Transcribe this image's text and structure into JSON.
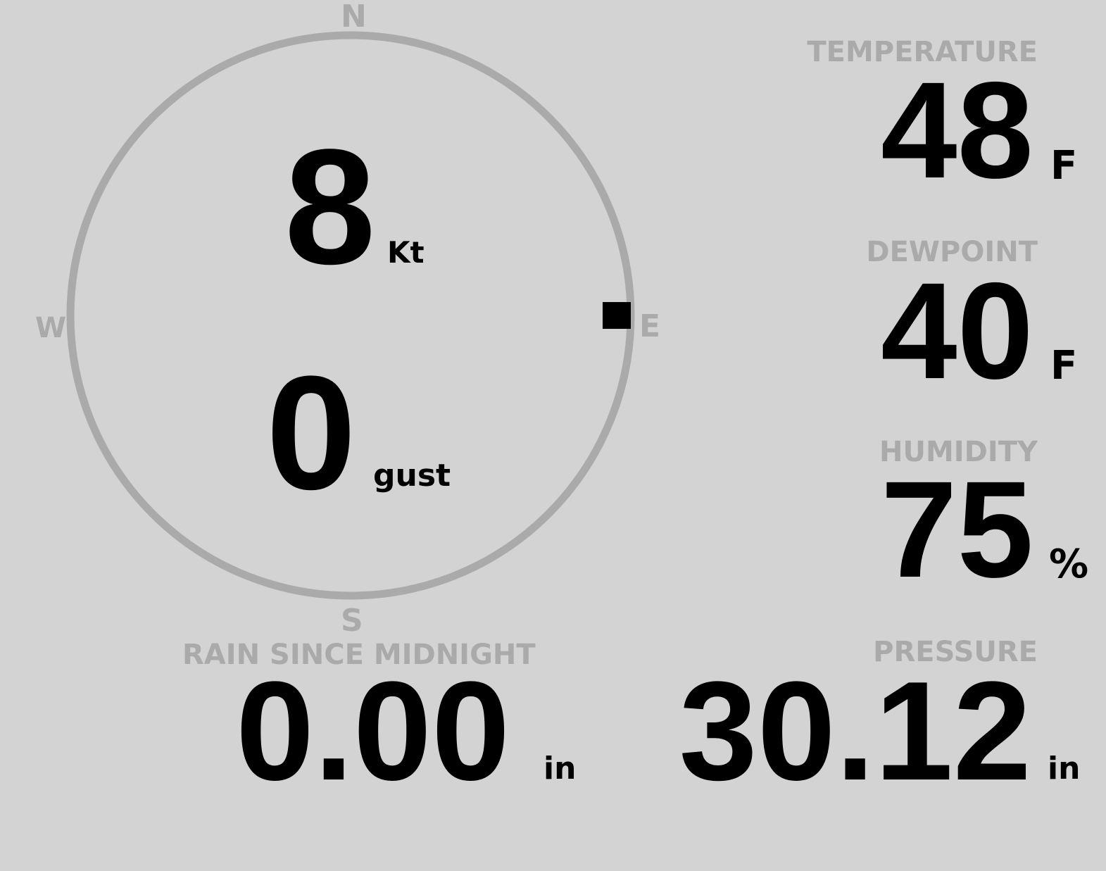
{
  "colors": {
    "background": "#d3d3d3",
    "label": "#aaaaaa",
    "value": "#000000"
  },
  "wind": {
    "cardinals": {
      "n": "N",
      "e": "E",
      "s": "S",
      "w": "W"
    },
    "speed": "8",
    "speed_unit": "Kt",
    "gust": "0",
    "gust_unit": "gust",
    "direction_deg": 90
  },
  "temperature": {
    "label": "TEMPERATURE",
    "value": "48",
    "unit": "F"
  },
  "dewpoint": {
    "label": "DEWPOINT",
    "value": "40",
    "unit": "F"
  },
  "humidity": {
    "label": "HUMIDITY",
    "value": "75",
    "unit": "%"
  },
  "rain": {
    "label": "RAIN SINCE MIDNIGHT",
    "value": "0.00",
    "unit": "in"
  },
  "pressure": {
    "label": "PRESSURE",
    "value": "30.12",
    "unit": "in"
  }
}
